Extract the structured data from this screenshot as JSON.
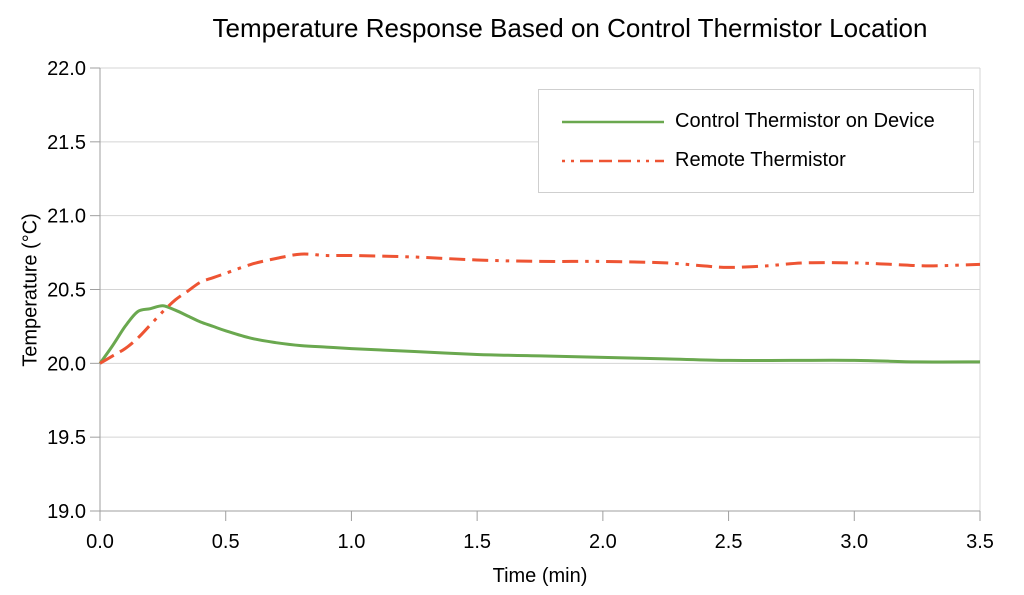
{
  "chart_data": {
    "type": "line",
    "title": "Temperature Response Based on Control Thermistor Location",
    "xlabel": "Time (min)",
    "ylabel": "Temperature (°C)",
    "xlim": [
      0,
      3.5
    ],
    "ylim": [
      19.0,
      22.0
    ],
    "x_ticks": [
      0,
      0.5,
      1,
      1.5,
      2,
      2.5,
      3,
      3.5
    ],
    "y_ticks": [
      19,
      19.5,
      20,
      20.5,
      21,
      21.5,
      22
    ],
    "grid": "horizontal-only",
    "legend_position": "top-right-inside",
    "colors": {
      "grid": "#d4d4d4",
      "axis": "#9f9f9f",
      "text": "#000000",
      "series_control": "#6aa84f",
      "series_remote": "#ee5433"
    },
    "series": [
      {
        "name": "Control Thermistor on Device",
        "color": "#6aa84f",
        "line_style": "solid",
        "x": [
          0,
          0.05,
          0.1,
          0.15,
          0.2,
          0.25,
          0.3,
          0.35,
          0.4,
          0.45,
          0.5,
          0.6,
          0.7,
          0.8,
          0.9,
          1.0,
          1.25,
          1.5,
          1.75,
          2.0,
          2.25,
          2.5,
          2.75,
          3.0,
          3.25,
          3.5
        ],
        "y": [
          20.0,
          20.12,
          20.25,
          20.35,
          20.37,
          20.39,
          20.36,
          20.32,
          20.28,
          20.25,
          20.22,
          20.17,
          20.14,
          20.12,
          20.11,
          20.1,
          20.08,
          20.06,
          20.05,
          20.04,
          20.03,
          20.02,
          20.02,
          20.02,
          20.01,
          20.01
        ]
      },
      {
        "name": "Remote Thermistor",
        "color": "#ee5433",
        "line_style": "dash-dot-dot",
        "x": [
          0,
          0.05,
          0.1,
          0.15,
          0.2,
          0.25,
          0.3,
          0.35,
          0.4,
          0.45,
          0.5,
          0.6,
          0.7,
          0.8,
          0.9,
          1.0,
          1.25,
          1.5,
          1.75,
          2.0,
          2.25,
          2.4,
          2.5,
          2.65,
          2.8,
          3.0,
          3.15,
          3.3,
          3.5
        ],
        "y": [
          20.0,
          20.05,
          20.1,
          20.17,
          20.26,
          20.35,
          20.43,
          20.49,
          20.55,
          20.58,
          20.61,
          20.67,
          20.71,
          20.74,
          20.73,
          20.73,
          20.72,
          20.7,
          20.69,
          20.69,
          20.68,
          20.66,
          20.65,
          20.66,
          20.68,
          20.68,
          20.67,
          20.66,
          20.67
        ]
      }
    ]
  }
}
